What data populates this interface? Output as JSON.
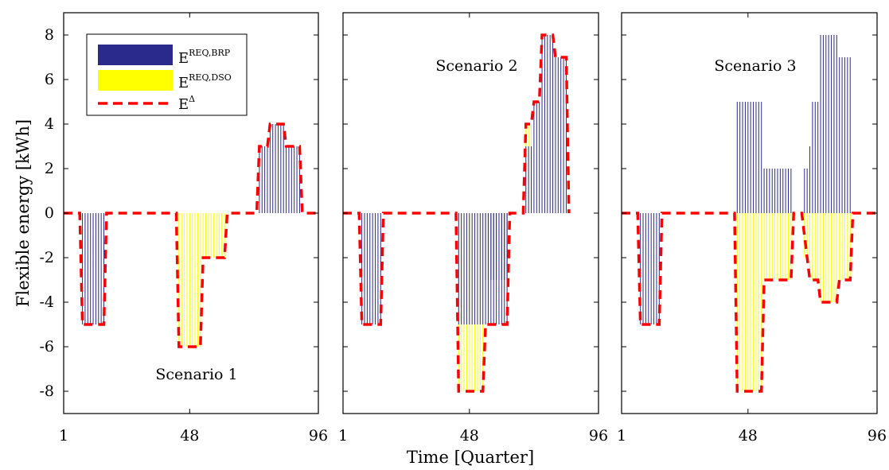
{
  "chart_data": {
    "type": "bar",
    "x_ticks": [
      "1",
      "48",
      "96"
    ],
    "y_ticks": [
      "8",
      "6",
      "4",
      "2",
      "0",
      "-2",
      "-4",
      "-6",
      "-8"
    ],
    "xlabel": "Time [Quarter]",
    "ylabel": "Flexible energy [kWh]",
    "xlim": [
      1,
      96
    ],
    "ylim": [
      -9,
      9
    ],
    "grid": false,
    "legend": {
      "placement": "top-left",
      "entries": [
        {
          "base": "E",
          "sup": "REQ,BRP",
          "style": "fill",
          "color": "#2a2a8c"
        },
        {
          "base": "E",
          "sup": "REQ,DSO",
          "style": "fill",
          "color": "#ffff00"
        },
        {
          "base": "E",
          "sup": "Δ",
          "style": "dashed-line",
          "color": "#ff0000"
        }
      ]
    },
    "colors": {
      "brp": "#2a2a8c",
      "dso": "#ffff00",
      "delta": "#ff0000",
      "axes": "#000000"
    },
    "panels": [
      {
        "label": "Scenario 1",
        "brp": [
          {
            "from": 8,
            "to": 16,
            "value": -5
          },
          {
            "from": 74,
            "to": 77,
            "value": 3
          },
          {
            "from": 78,
            "to": 83,
            "value": 4
          },
          {
            "from": 84,
            "to": 89,
            "value": 3
          }
        ],
        "dso": [
          {
            "from": 44,
            "to": 52,
            "value": -6
          },
          {
            "from": 53,
            "to": 61,
            "value": -2
          }
        ],
        "delta": [
          [
            1,
            0
          ],
          [
            7,
            0
          ],
          [
            8,
            -5
          ],
          [
            16,
            -5
          ],
          [
            17,
            0
          ],
          [
            43,
            0
          ],
          [
            44,
            -6
          ],
          [
            52,
            -6
          ],
          [
            53,
            -2
          ],
          [
            61,
            -2
          ],
          [
            62,
            0
          ],
          [
            73,
            0
          ],
          [
            74,
            3
          ],
          [
            77,
            3
          ],
          [
            78,
            4
          ],
          [
            83,
            4
          ],
          [
            84,
            3
          ],
          [
            89,
            3
          ],
          [
            90,
            0
          ],
          [
            96,
            0
          ]
        ]
      },
      {
        "label": "Scenario 2",
        "brp": [
          {
            "from": 8,
            "to": 15,
            "value": -5
          },
          {
            "from": 44,
            "to": 53,
            "value": -5
          },
          {
            "from": 54,
            "to": 62,
            "value": -5
          },
          {
            "from": 54,
            "to": 62,
            "value": -3
          },
          {
            "from": 69,
            "to": 71,
            "value": 3
          },
          {
            "from": 72,
            "to": 74,
            "value": 5
          },
          {
            "from": 75,
            "to": 79,
            "value": 8
          },
          {
            "from": 80,
            "to": 84,
            "value": 7
          }
        ],
        "dso": [
          {
            "from": 44,
            "to": 53,
            "value": -8
          },
          {
            "from": 69,
            "to": 71,
            "value": 4
          }
        ],
        "delta": [
          [
            1,
            0
          ],
          [
            7,
            0
          ],
          [
            8,
            -5
          ],
          [
            15,
            -5
          ],
          [
            16,
            0
          ],
          [
            43,
            0
          ],
          [
            44,
            -8
          ],
          [
            53,
            -8
          ],
          [
            54,
            -5
          ],
          [
            62,
            -5
          ],
          [
            63,
            0
          ],
          [
            68,
            0
          ],
          [
            69,
            4
          ],
          [
            71,
            4
          ],
          [
            72,
            5
          ],
          [
            74,
            5
          ],
          [
            75,
            8
          ],
          [
            79,
            8
          ],
          [
            80,
            7
          ],
          [
            84,
            7
          ],
          [
            85,
            0
          ]
        ]
      },
      {
        "label": "Scenario 3",
        "brp": [
          {
            "from": 8,
            "to": 15,
            "value": -5
          },
          {
            "from": 44,
            "to": 53,
            "value": 5
          },
          {
            "from": 54,
            "to": 64,
            "value": 2
          },
          {
            "from": 69,
            "to": 70,
            "value": 2
          },
          {
            "from": 71,
            "to": 71,
            "value": 3
          },
          {
            "from": 72,
            "to": 74,
            "value": 5
          },
          {
            "from": 75,
            "to": 81,
            "value": 8
          },
          {
            "from": 82,
            "to": 86,
            "value": 7
          }
        ],
        "dso": [
          {
            "from": 44,
            "to": 53,
            "value": -8
          },
          {
            "from": 54,
            "to": 64,
            "value": -3
          },
          {
            "from": 69,
            "to": 70,
            "value": -2
          },
          {
            "from": 71,
            "to": 74,
            "value": -3
          },
          {
            "from": 75,
            "to": 81,
            "value": -4
          },
          {
            "from": 82,
            "to": 86,
            "value": -3
          }
        ],
        "delta": [
          [
            1,
            0
          ],
          [
            7,
            0
          ],
          [
            8,
            -5
          ],
          [
            15,
            -5
          ],
          [
            16,
            0
          ],
          [
            43,
            0
          ],
          [
            44,
            -8
          ],
          [
            53,
            -8
          ],
          [
            54,
            -3
          ],
          [
            64,
            -3
          ],
          [
            65,
            0
          ],
          [
            68,
            0
          ],
          [
            69,
            -1
          ],
          [
            70,
            -2
          ],
          [
            71,
            -3
          ],
          [
            74,
            -3
          ],
          [
            75,
            -4
          ],
          [
            81,
            -4
          ],
          [
            82,
            -3
          ],
          [
            86,
            -3
          ],
          [
            87,
            0
          ],
          [
            96,
            0
          ]
        ]
      }
    ]
  }
}
